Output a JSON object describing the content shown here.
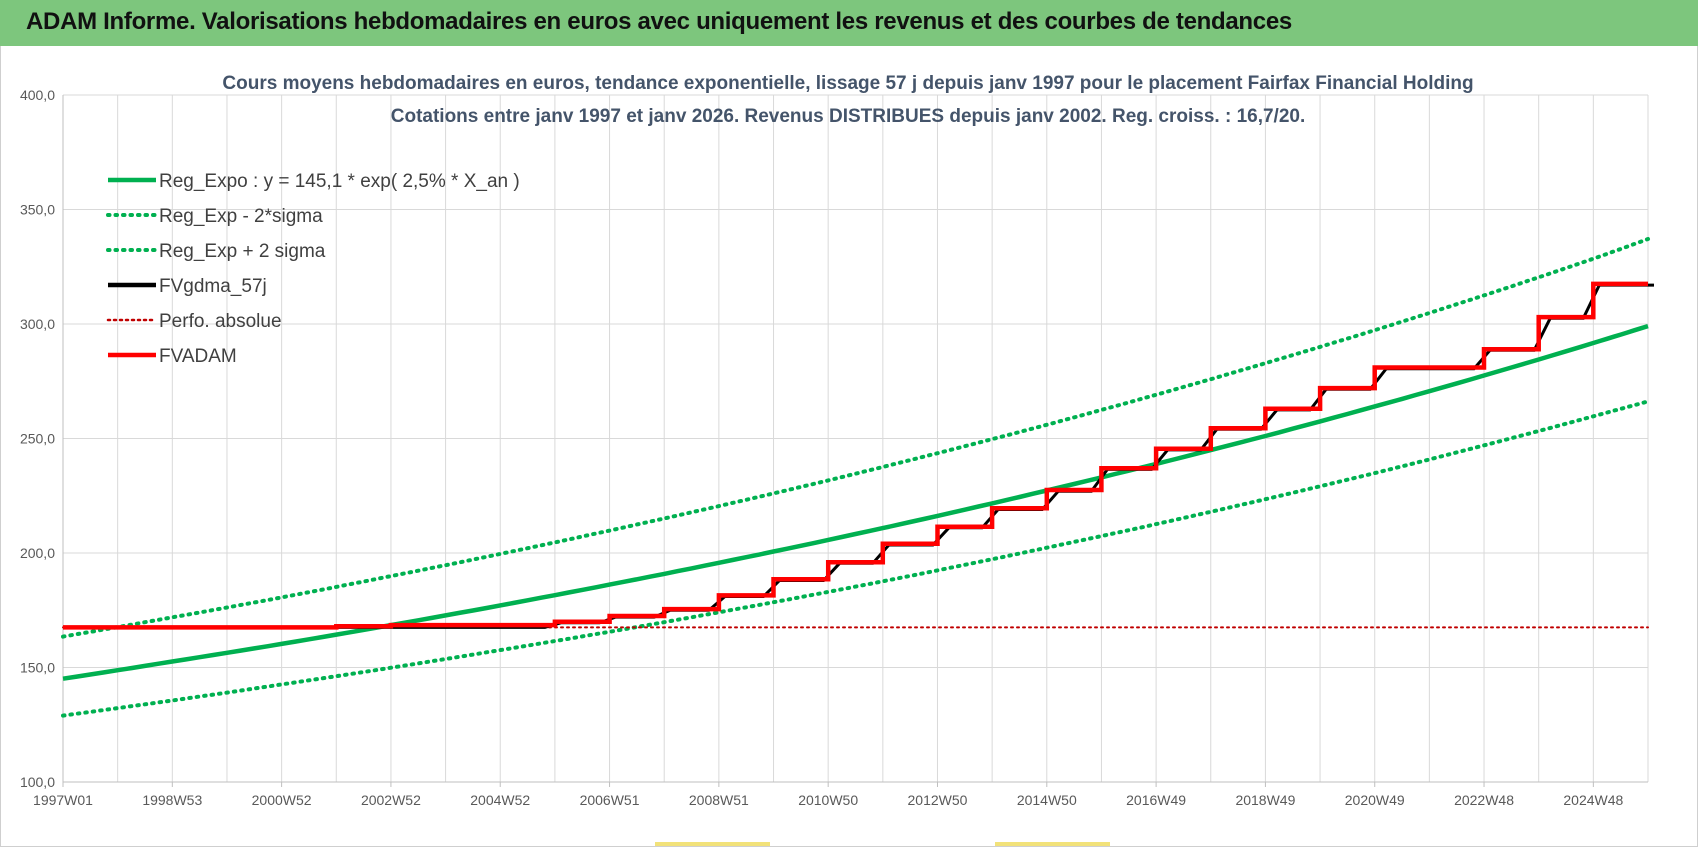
{
  "header": {
    "title": "ADAM Informe. Valorisations hebdomadaires en euros avec uniquement les revenus et des courbes de tendances"
  },
  "colors": {
    "banner": "#7dc67d",
    "green": "#00b050",
    "red": "#ff0000",
    "black": "#000000",
    "grid": "#d9d9d9"
  },
  "chart_data": {
    "type": "line",
    "title": "Cours moyens hebdomadaires en euros, tendance exponentielle, lissage 57 j depuis janv 1997  pour le placement Fairfax Financial Holding",
    "subtitle": "Cotations entre janv 1997 et janv 2026. Revenus DISTRIBUES depuis janv 2002.  Reg. croiss. : 16,7/20.",
    "xlabel": "",
    "ylabel": "",
    "ylim": [
      100,
      400
    ],
    "xlim": [
      1997.0,
      2026.0
    ],
    "grid": true,
    "legend_position": "top-left",
    "y_ticks": [
      "400,0",
      "350,0",
      "300,0",
      "250,0",
      "200,0",
      "150,0",
      "100,0"
    ],
    "y_tick_values": [
      400,
      350,
      300,
      250,
      200,
      150,
      100
    ],
    "x_ticks": [
      "1997W01",
      "1998W53",
      "2000W52",
      "2002W52",
      "2004W52",
      "2006W51",
      "2008W51",
      "2010W50",
      "2012W50",
      "2014W50",
      "2016W49",
      "2018W49",
      "2020W49",
      "2022W48",
      "2024W48"
    ],
    "x_tick_years": [
      1997.0,
      1999.0,
      2001.0,
      2003.0,
      2005.0,
      2007.0,
      2009.0,
      2011.0,
      2013.0,
      2015.0,
      2017.0,
      2019.0,
      2021.0,
      2023.0,
      2025.0
    ],
    "series": [
      {
        "name": "Reg_Expo : y = 145,1 * exp( 2,5% *  X_an )",
        "style": "solid",
        "color": "#00b050",
        "x": [
          1997,
          1999,
          2001,
          2003,
          2005,
          2007,
          2009,
          2011,
          2013,
          2015,
          2017,
          2019,
          2021,
          2023,
          2025,
          2026
        ],
        "values": [
          145.1,
          152.6,
          160.3,
          168.5,
          177.1,
          186.2,
          195.7,
          205.7,
          216.2,
          227.3,
          238.9,
          251.1,
          264.0,
          277.5,
          291.7,
          299.1
        ]
      },
      {
        "name": "Reg_Exp - 2*sigma",
        "style": "dotted",
        "color": "#00b050",
        "x": [
          1997,
          1999,
          2001,
          2003,
          2005,
          2007,
          2009,
          2011,
          2013,
          2015,
          2017,
          2019,
          2021,
          2023,
          2025,
          2026
        ],
        "values": [
          129.0,
          135.6,
          142.6,
          149.9,
          157.6,
          165.6,
          174.1,
          183.0,
          192.4,
          202.3,
          212.6,
          223.5,
          234.9,
          247.0,
          259.7,
          266.2
        ]
      },
      {
        "name": "Reg_Exp + 2 sigma",
        "style": "dotted",
        "color": "#00b050",
        "x": [
          1997,
          1999,
          2001,
          2003,
          2005,
          2007,
          2009,
          2011,
          2013,
          2015,
          2017,
          2019,
          2021,
          2023,
          2025,
          2026
        ],
        "values": [
          163.5,
          171.9,
          180.6,
          189.9,
          199.6,
          209.8,
          220.5,
          231.7,
          243.6,
          256.0,
          269.1,
          282.9,
          297.3,
          312.5,
          328.5,
          337.1
        ]
      },
      {
        "name": "FVgdma_57j",
        "style": "solid",
        "color": "#000000",
        "x": [
          1997,
          2002.0,
          2006.0,
          2007.0,
          2008.0,
          2009.0,
          2010.0,
          2011.1,
          2012.0,
          2013.1,
          2014.0,
          2015.1,
          2016.0,
          2017.1,
          2018.0,
          2019.1,
          2020.0,
          2021.1,
          2023.0,
          2024.1,
          2025.0,
          2026.0
        ],
        "values": [
          167.5,
          167.5,
          169.5,
          172.0,
          175.0,
          181.0,
          188.0,
          195.5,
          203.5,
          211.0,
          219.0,
          227.0,
          236.5,
          245.0,
          254.0,
          262.5,
          271.5,
          280.5,
          288.5,
          302.5,
          317.0,
          317.0
        ]
      },
      {
        "name": "Perfo. absolue",
        "style": "dotted",
        "color": "#c00000",
        "x": [
          1997,
          2026.0
        ],
        "values": [
          167.5,
          167.5
        ]
      },
      {
        "name": "FVADAM",
        "style": "solid",
        "color": "#ff0000",
        "x": [
          1997,
          2002.0,
          2003.0,
          2006.0,
          2007.0,
          2008.0,
          2009.0,
          2010.0,
          2011.0,
          2012.0,
          2013.0,
          2014.0,
          2015.0,
          2016.0,
          2017.0,
          2018.0,
          2019.0,
          2020.0,
          2021.0,
          2023.0,
          2024.0,
          2025.0,
          2026.0
        ],
        "values": [
          167.5,
          168.0,
          168.5,
          170.0,
          172.5,
          175.5,
          181.5,
          188.5,
          196.0,
          204.0,
          211.5,
          219.5,
          227.5,
          237.0,
          245.5,
          254.5,
          263.0,
          272.0,
          281.0,
          289.0,
          303.0,
          317.5,
          317.5
        ]
      }
    ]
  }
}
